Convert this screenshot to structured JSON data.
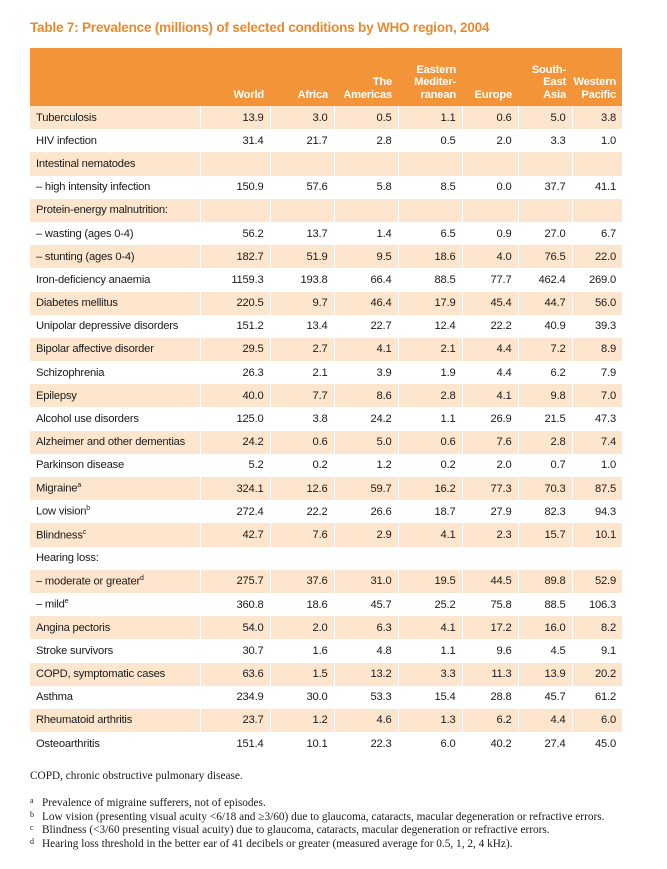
{
  "title": "Table 7: Prevalence (millions) of selected conditions by WHO region, 2004",
  "headers": {
    "world": "World",
    "africa": "Africa",
    "americas": [
      "The",
      "Americas"
    ],
    "emr": [
      "Eastern",
      "Mediter-",
      "ranean"
    ],
    "europe": "Europe",
    "sea": [
      "South-",
      "East Asia"
    ],
    "wpr": [
      "Western",
      "Pacific"
    ]
  },
  "rows": [
    {
      "label": "Tuberculosis",
      "vals": [
        "13.9",
        "3.0",
        "0.5",
        "1.1",
        "0.6",
        "5.0",
        "3.8"
      ]
    },
    {
      "label": "HIV infection",
      "vals": [
        "31.4",
        "21.7",
        "2.8",
        "0.5",
        "2.0",
        "3.3",
        "1.0"
      ]
    },
    {
      "label": "Intestinal nematodes",
      "vals": [
        "",
        "",
        "",
        "",
        "",
        "",
        ""
      ]
    },
    {
      "label": "– high intensity infection",
      "vals": [
        "150.9",
        "57.6",
        "5.8",
        "8.5",
        "0.0",
        "37.7",
        "41.1"
      ]
    },
    {
      "label": "Protein-energy malnutrition:",
      "vals": [
        "",
        "",
        "",
        "",
        "",
        "",
        ""
      ]
    },
    {
      "label": "– wasting (ages 0-4)",
      "vals": [
        "56.2",
        "13.7",
        "1.4",
        "6.5",
        "0.9",
        "27.0",
        "6.7"
      ]
    },
    {
      "label": "– stunting (ages 0-4)",
      "vals": [
        "182.7",
        "51.9",
        "9.5",
        "18.6",
        "4.0",
        "76.5",
        "22.0"
      ]
    },
    {
      "label": "Iron-deficiency anaemia",
      "vals": [
        "1159.3",
        "193.8",
        "66.4",
        "88.5",
        "77.7",
        "462.4",
        "269.0"
      ]
    },
    {
      "label": "Diabetes mellitus",
      "vals": [
        "220.5",
        "9.7",
        "46.4",
        "17.9",
        "45.4",
        "44.7",
        "56.0"
      ]
    },
    {
      "label": "Unipolar depressive disorders",
      "vals": [
        "151.2",
        "13.4",
        "22.7",
        "12.4",
        "22.2",
        "40.9",
        "39.3"
      ]
    },
    {
      "label": "Bipolar affective disorder",
      "vals": [
        "29.5",
        "2.7",
        "4.1",
        "2.1",
        "4.4",
        "7.2",
        "8.9"
      ]
    },
    {
      "label": "Schizophrenia",
      "vals": [
        "26.3",
        "2.1",
        "3.9",
        "1.9",
        "4.4",
        "6.2",
        "7.9"
      ]
    },
    {
      "label": "Epilepsy",
      "vals": [
        "40.0",
        "7.7",
        "8.6",
        "2.8",
        "4.1",
        "9.8",
        "7.0"
      ]
    },
    {
      "label": "Alcohol use disorders",
      "vals": [
        "125.0",
        "3.8",
        "24.2",
        "1.1",
        "26.9",
        "21.5",
        "47.3"
      ]
    },
    {
      "label": "Alzheimer and other dementias",
      "vals": [
        "24.2",
        "0.6",
        "5.0",
        "0.6",
        "7.6",
        "2.8",
        "7.4"
      ]
    },
    {
      "label": "Parkinson disease",
      "vals": [
        "5.2",
        "0.2",
        "1.2",
        "0.2",
        "2.0",
        "0.7",
        "1.0"
      ]
    },
    {
      "label": "Migraine",
      "sup": "a",
      "vals": [
        "324.1",
        "12.6",
        "59.7",
        "16.2",
        "77.3",
        "70.3",
        "87.5"
      ]
    },
    {
      "label": "Low vision",
      "sup": "b",
      "vals": [
        "272.4",
        "22.2",
        "26.6",
        "18.7",
        "27.9",
        "82.3",
        "94.3"
      ]
    },
    {
      "label": "Blindness",
      "sup": "c",
      "vals": [
        "42.7",
        "7.6",
        "2.9",
        "4.1",
        "2.3",
        "15.7",
        "10.1"
      ]
    },
    {
      "label": "Hearing loss:",
      "vals": [
        "",
        "",
        "",
        "",
        "",
        "",
        ""
      ]
    },
    {
      "label": "– moderate or greater",
      "sup": "d",
      "vals": [
        "275.7",
        "37.6",
        "31.0",
        "19.5",
        "44.5",
        "89.8",
        "52.9"
      ]
    },
    {
      "label": "– mild",
      "sup": "e",
      "vals": [
        "360.8",
        "18.6",
        "45.7",
        "25.2",
        "75.8",
        "88.5",
        "106.3"
      ]
    },
    {
      "label": "Angina pectoris",
      "vals": [
        "54.0",
        "2.0",
        "6.3",
        "4.1",
        "17.2",
        "16.0",
        "8.2"
      ]
    },
    {
      "label": "Stroke survivors",
      "vals": [
        "30.7",
        "1.6",
        "4.8",
        "1.1",
        "9.6",
        "4.5",
        "9.1"
      ]
    },
    {
      "label": "COPD, symptomatic cases",
      "vals": [
        "63.6",
        "1.5",
        "13.2",
        "3.3",
        "11.3",
        "13.9",
        "20.2"
      ]
    },
    {
      "label": "Asthma",
      "vals": [
        "234.9",
        "30.0",
        "53.3",
        "15.4",
        "28.8",
        "45.7",
        "61.2"
      ]
    },
    {
      "label": "Rheumatoid arthritis",
      "vals": [
        "23.7",
        "1.2",
        "4.6",
        "1.3",
        "6.2",
        "4.4",
        "6.0"
      ]
    },
    {
      "label": "Osteoarthritis",
      "vals": [
        "151.4",
        "10.1",
        "22.3",
        "6.0",
        "40.2",
        "27.4",
        "45.0"
      ]
    }
  ],
  "abbreviation": "COPD, chronic obstructive pulmonary disease.",
  "footnotes": [
    {
      "mark": "a",
      "text": "Prevalence of migraine sufferers, not of episodes."
    },
    {
      "mark": "b",
      "text": "Low vision (presenting visual acuity <6/18 and ≥3/60) due to glaucoma, cataracts, macular degeneration or refractive errors."
    },
    {
      "mark": "c",
      "text": "Blindness (<3/60 presenting visual acuity) due to glaucoma, cataracts, macular degeneration or refractive errors."
    },
    {
      "mark": "d",
      "text": "Hearing loss threshold in the better ear of 41 decibels or greater (measured average for 0.5, 1, 2, 4 kHz)."
    }
  ],
  "colors": {
    "header_bg": "#f29437",
    "stripe": "#fde6cd",
    "title": "#e98a2f"
  }
}
